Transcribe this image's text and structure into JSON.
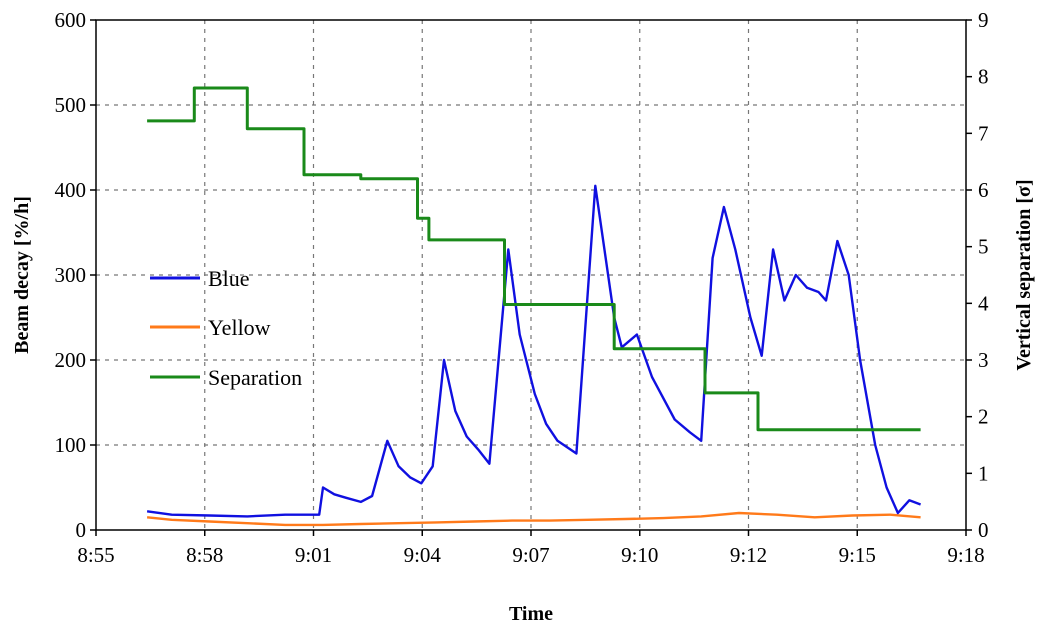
{
  "chart_data": {
    "type": "line",
    "title": "",
    "xlabel": "Time",
    "ylabel": "Beam decay [%/h]",
    "y2label": "Vertical separation [σ]",
    "x_ticks": [
      "8:55",
      "8:58",
      "9:01",
      "9:04",
      "9:07",
      "9:10",
      "9:12",
      "9:15",
      "9:18"
    ],
    "xlim_minutes": [
      0,
      23
    ],
    "ylim": [
      0,
      600
    ],
    "y_ticks": [
      0,
      100,
      200,
      300,
      400,
      500,
      600
    ],
    "y2lim": [
      0,
      9
    ],
    "y2_ticks": [
      0,
      1,
      2,
      3,
      4,
      5,
      6,
      7,
      8,
      9
    ],
    "grid": true,
    "legend_placement": "center-left",
    "series": [
      {
        "name": "Blue",
        "axis": "left",
        "color": "#1010e0",
        "x": [
          1.35,
          2.0,
          3.0,
          4.0,
          5.0,
          5.9,
          6.0,
          6.3,
          6.6,
          7.0,
          7.3,
          7.7,
          8.0,
          8.3,
          8.6,
          8.9,
          9.2,
          9.5,
          9.8,
          10.1,
          10.4,
          10.9,
          11.2,
          11.6,
          11.9,
          12.2,
          12.7,
          13.2,
          13.7,
          13.9,
          14.3,
          14.7,
          15.3,
          15.7,
          16.0,
          16.3,
          16.6,
          16.9,
          17.3,
          17.6,
          17.9,
          18.2,
          18.5,
          18.8,
          19.1,
          19.3,
          19.6,
          19.9,
          20.2,
          20.6,
          20.9,
          21.2,
          21.5,
          21.8
        ],
        "y": [
          22,
          18,
          17,
          16,
          18,
          18,
          50,
          42,
          38,
          33,
          40,
          105,
          75,
          62,
          55,
          75,
          200,
          140,
          110,
          95,
          78,
          330,
          230,
          160,
          125,
          105,
          90,
          405,
          250,
          215,
          230,
          180,
          130,
          115,
          105,
          320,
          380,
          330,
          250,
          205,
          330,
          270,
          300,
          285,
          280,
          270,
          340,
          300,
          200,
          100,
          50,
          20,
          35,
          30
        ]
      },
      {
        "name": "Yellow",
        "axis": "left",
        "color": "#ff7a1a",
        "x": [
          1.35,
          2.0,
          3.0,
          4.0,
          5.0,
          6.0,
          7.0,
          8.0,
          9.0,
          10.0,
          11.0,
          12.0,
          13.0,
          14.0,
          15.0,
          16.0,
          17.0,
          18.0,
          19.0,
          20.0,
          21.0,
          21.8
        ],
        "y": [
          15,
          12,
          10,
          8,
          6,
          6,
          7,
          8,
          9,
          10,
          11,
          11,
          12,
          13,
          14,
          16,
          20,
          18,
          15,
          17,
          18,
          15
        ]
      },
      {
        "name": "Separation",
        "axis": "right",
        "color": "#1a8a1a",
        "x": [
          1.35,
          2.6,
          2.6,
          4.0,
          4.0,
          5.5,
          5.5,
          7.0,
          7.0,
          8.5,
          8.5,
          8.8,
          8.8,
          9.1,
          9.1,
          10.8,
          10.8,
          13.7,
          13.7,
          16.1,
          16.1,
          17.5,
          17.5,
          21.8
        ],
        "y": [
          7.22,
          7.22,
          7.8,
          7.8,
          7.08,
          7.08,
          6.27,
          6.27,
          6.2,
          6.2,
          5.5,
          5.5,
          5.12,
          5.12,
          5.12,
          5.12,
          3.98,
          3.98,
          3.2,
          3.2,
          2.42,
          2.42,
          1.77,
          1.77
        ]
      }
    ]
  }
}
